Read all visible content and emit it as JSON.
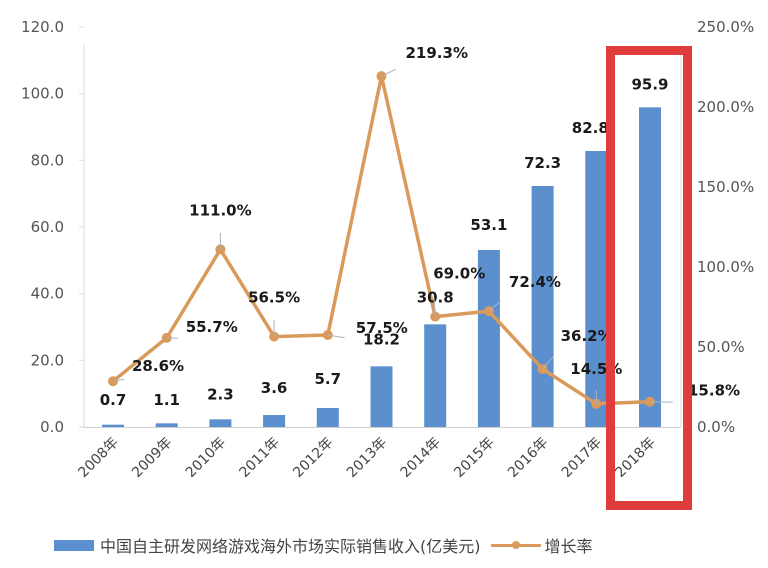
{
  "chart_data": {
    "type": "bar+line",
    "title": "",
    "categories": [
      "2008年",
      "2009年",
      "2010年",
      "2011年",
      "2012年",
      "2013年",
      "2014年",
      "2015年",
      "2016年",
      "2017年",
      "2018年"
    ],
    "series": [
      {
        "name": "中国自主研发网络游戏海外市场实际销售收入(亿美元)",
        "type": "bar",
        "axis": "left",
        "color": "#5b8fce",
        "values": [
          0.7,
          1.1,
          2.3,
          3.6,
          5.7,
          18.2,
          30.8,
          53.1,
          72.3,
          82.8,
          95.9
        ],
        "labels": [
          "0.7",
          "1.1",
          "2.3",
          "3.6",
          "5.7",
          "18.2",
          "30.8",
          "53.1",
          "72.3",
          "82.8",
          "95.9"
        ]
      },
      {
        "name": "增长率",
        "type": "line",
        "axis": "right",
        "color": "#d99a5b",
        "values": [
          28.6,
          55.7,
          111.0,
          56.5,
          57.5,
          219.3,
          69.0,
          72.4,
          36.2,
          14.5,
          15.8
        ],
        "labels": [
          "28.6%",
          "55.7%",
          "111.0%",
          "56.5%",
          "57.5%",
          "219.3%",
          "69.0%",
          "72.4%",
          "36.2%",
          "14.5%",
          "15.8%"
        ]
      }
    ],
    "left_axis": {
      "ylim": [
        0,
        120
      ],
      "ticks": [
        "0.0",
        "20.0",
        "40.0",
        "60.0",
        "80.0",
        "100.0",
        "120.0"
      ]
    },
    "right_axis": {
      "ylim": [
        0,
        250
      ],
      "ticks": [
        "0.0%",
        "50.0%",
        "100.0%",
        "150.0%",
        "200.0%",
        "250.0%"
      ]
    },
    "xlabel": "",
    "ylabel": "",
    "grid": false,
    "legend_position": "bottom",
    "annotations": [
      {
        "type": "highlight-box",
        "target": "2018年",
        "color": "#e03c3c"
      }
    ]
  },
  "legend": {
    "bar_label": "中国自主研发网络游戏海外市场实际销售收入(亿美元)",
    "line_label": "增长率"
  }
}
